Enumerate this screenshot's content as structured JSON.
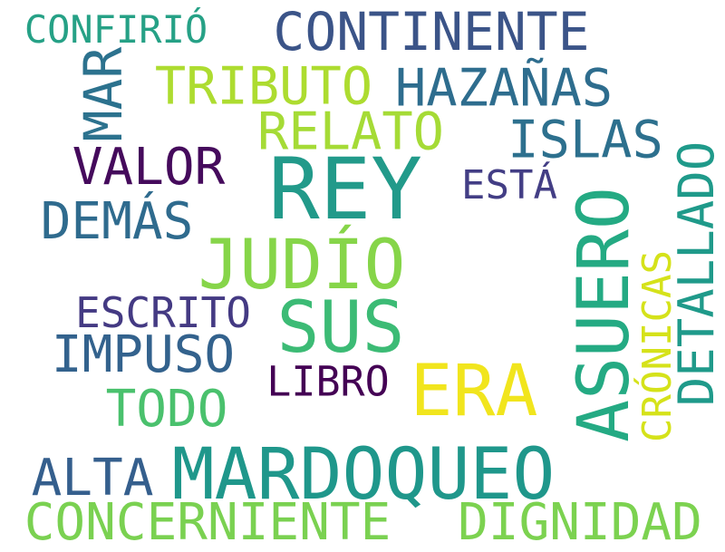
{
  "words": {
    "confirio": {
      "text": "CONFIRIÓ",
      "color": "#26a186"
    },
    "continente": {
      "text": "CONTINENTE",
      "color": "#3b5488"
    },
    "mar": {
      "text": "MAR",
      "color": "#2c728e"
    },
    "tributo": {
      "text": "TRIBUTO",
      "color": "#addc30"
    },
    "hazanas": {
      "text": "HAZAÑAS",
      "color": "#2e6d8e"
    },
    "relato": {
      "text": "RELATO",
      "color": "#a5db36"
    },
    "islas": {
      "text": "ISLAS",
      "color": "#2d708e"
    },
    "valor": {
      "text": "VALOR",
      "color": "#450a5c"
    },
    "esta": {
      "text": "ESTÁ",
      "color": "#433e85"
    },
    "rey": {
      "text": "REY",
      "color": "#229a8a"
    },
    "demas": {
      "text": "DEMÁS",
      "color": "#2f6b8e"
    },
    "judio": {
      "text": "JUDÍO",
      "color": "#86d549"
    },
    "detallado": {
      "text": "DETALLADO",
      "color": "#1f9a8a"
    },
    "asuero": {
      "text": "ASUERO",
      "color": "#24aa83"
    },
    "cronicas": {
      "text": "CRÓNICAS",
      "color": "#d5e21a"
    },
    "escrito": {
      "text": "ESCRITO",
      "color": "#443a83"
    },
    "sus": {
      "text": "SUS",
      "color": "#3cbb75"
    },
    "impuso": {
      "text": "IMPUSO",
      "color": "#33628d"
    },
    "libro": {
      "text": "LIBRO",
      "color": "#440154"
    },
    "era": {
      "text": "ERA",
      "color": "#f1e51d"
    },
    "todo": {
      "text": "TODO",
      "color": "#4ac16d"
    },
    "alta": {
      "text": "ALTA",
      "color": "#355f8d"
    },
    "mardoqueo": {
      "text": "MARDOQUEO",
      "color": "#1f978b"
    },
    "concerniente": {
      "text": "CONCERNIENTE",
      "color": "#7ad151"
    },
    "dignidad": {
      "text": "DIGNIDAD",
      "color": "#7cd250"
    }
  }
}
